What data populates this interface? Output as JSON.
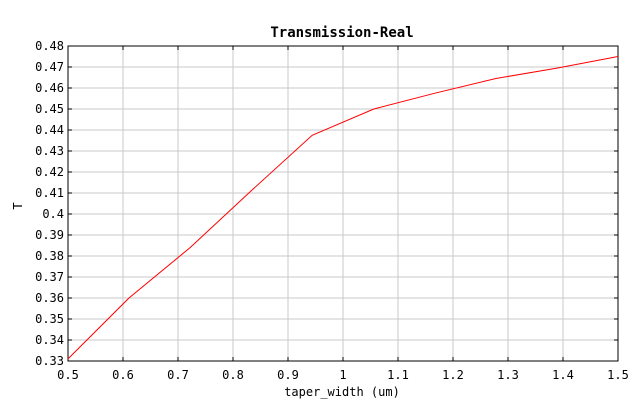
{
  "chart_data": {
    "type": "line",
    "title": "Transmission-Real",
    "xlabel": "taper_width (um)",
    "ylabel": "T",
    "xlim": [
      0.5,
      1.5
    ],
    "ylim": [
      0.33,
      0.48
    ],
    "x_ticks": [
      "0.5",
      "0.6",
      "0.7",
      "0.8",
      "0.9",
      "1",
      "1.1",
      "1.2",
      "1.3",
      "1.4",
      "1.5"
    ],
    "y_ticks": [
      "0.33",
      "0.34",
      "0.35",
      "0.36",
      "0.37",
      "0.38",
      "0.39",
      "0.4",
      "0.41",
      "0.42",
      "0.43",
      "0.44",
      "0.45",
      "0.46",
      "0.47",
      "0.48"
    ],
    "grid": true,
    "series": [
      {
        "color": "#ff0000",
        "x": [
          0.5,
          0.611,
          0.722,
          0.833,
          0.944,
          1.056,
          1.167,
          1.278,
          1.389,
          1.5
        ],
        "y": [
          0.331,
          0.36,
          0.384,
          0.411,
          0.4375,
          0.45,
          0.4575,
          0.4645,
          0.4695,
          0.475
        ]
      }
    ]
  }
}
